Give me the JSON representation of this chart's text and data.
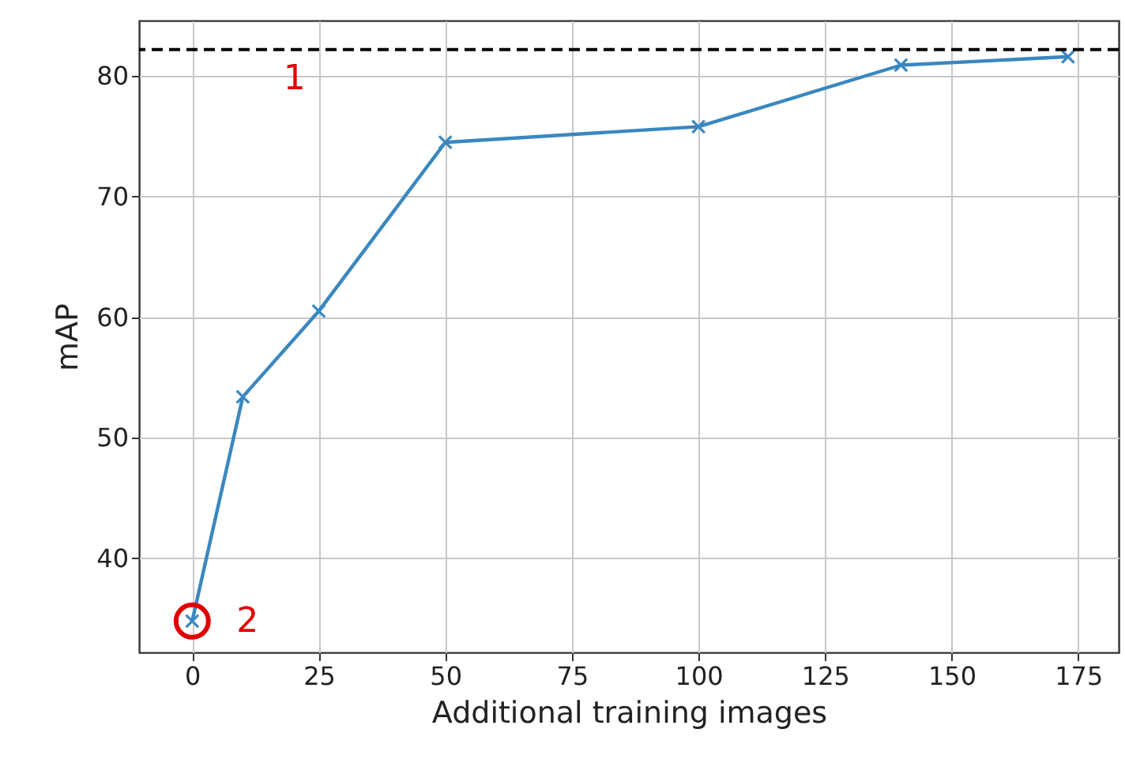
{
  "chart_data": {
    "type": "line",
    "xlabel": "Additional training images",
    "ylabel": "mAP",
    "x": [
      0,
      10,
      25,
      50,
      100,
      140,
      173
    ],
    "series": [
      {
        "color": "#3a87c0",
        "values": [
          34.8,
          53.4,
          60.5,
          74.5,
          75.8,
          80.9,
          81.6
        ]
      }
    ],
    "xlim": [
      -10.5,
      183
    ],
    "xticks": [
      0,
      25,
      50,
      75,
      100,
      125,
      150,
      175
    ],
    "ylim": [
      32.2,
      84.6
    ],
    "yticks": [
      40,
      50,
      60,
      70,
      80
    ],
    "ref_lines": [
      {
        "axis": "y",
        "value": 82.2,
        "color": "#000000",
        "line_style": "dashed"
      }
    ],
    "annotations": [
      {
        "text": "1",
        "x": 18,
        "y": 82.2
      },
      {
        "text": "2",
        "x": 0,
        "y": 34.8
      }
    ],
    "grid": true,
    "marker": "cross",
    "line_style": "solid"
  }
}
